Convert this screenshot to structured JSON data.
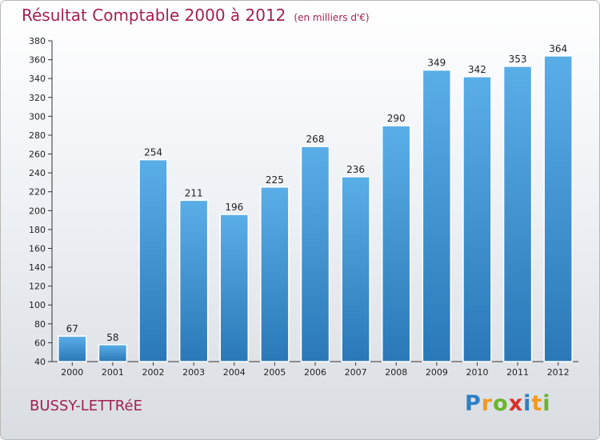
{
  "chart_data": {
    "type": "bar",
    "title": "Résultat Comptable 2000 à 2012",
    "subtitle": "(en milliers d'€)",
    "categories": [
      "2000",
      "2001",
      "2002",
      "2003",
      "2004",
      "2005",
      "2006",
      "2007",
      "2008",
      "2009",
      "2010",
      "2011",
      "2012"
    ],
    "values": [
      67,
      58,
      254,
      211,
      196,
      225,
      268,
      236,
      290,
      349,
      342,
      353,
      364
    ],
    "ylim": [
      40,
      380
    ],
    "yticks": [
      40,
      60,
      80,
      100,
      120,
      140,
      160,
      180,
      200,
      220,
      240,
      260,
      280,
      300,
      320,
      340,
      360,
      380
    ],
    "grid": false,
    "xlabel": "",
    "ylabel": "",
    "bar_color_top": "#5aaee8",
    "bar_color_bottom": "#2a78b8"
  },
  "location": "BUSSY-LETTRéE",
  "brand": {
    "letters": [
      "P",
      "r",
      "o",
      "x",
      "i",
      "t",
      "i"
    ],
    "colors": [
      "#2e7fc4",
      "#f39a1e",
      "#6ab42d",
      "#d9302a",
      "#2e7fc4",
      "#f39a1e",
      "#6ab42d"
    ]
  },
  "colors": {
    "title": "#a3204f",
    "axis": "#333333"
  }
}
